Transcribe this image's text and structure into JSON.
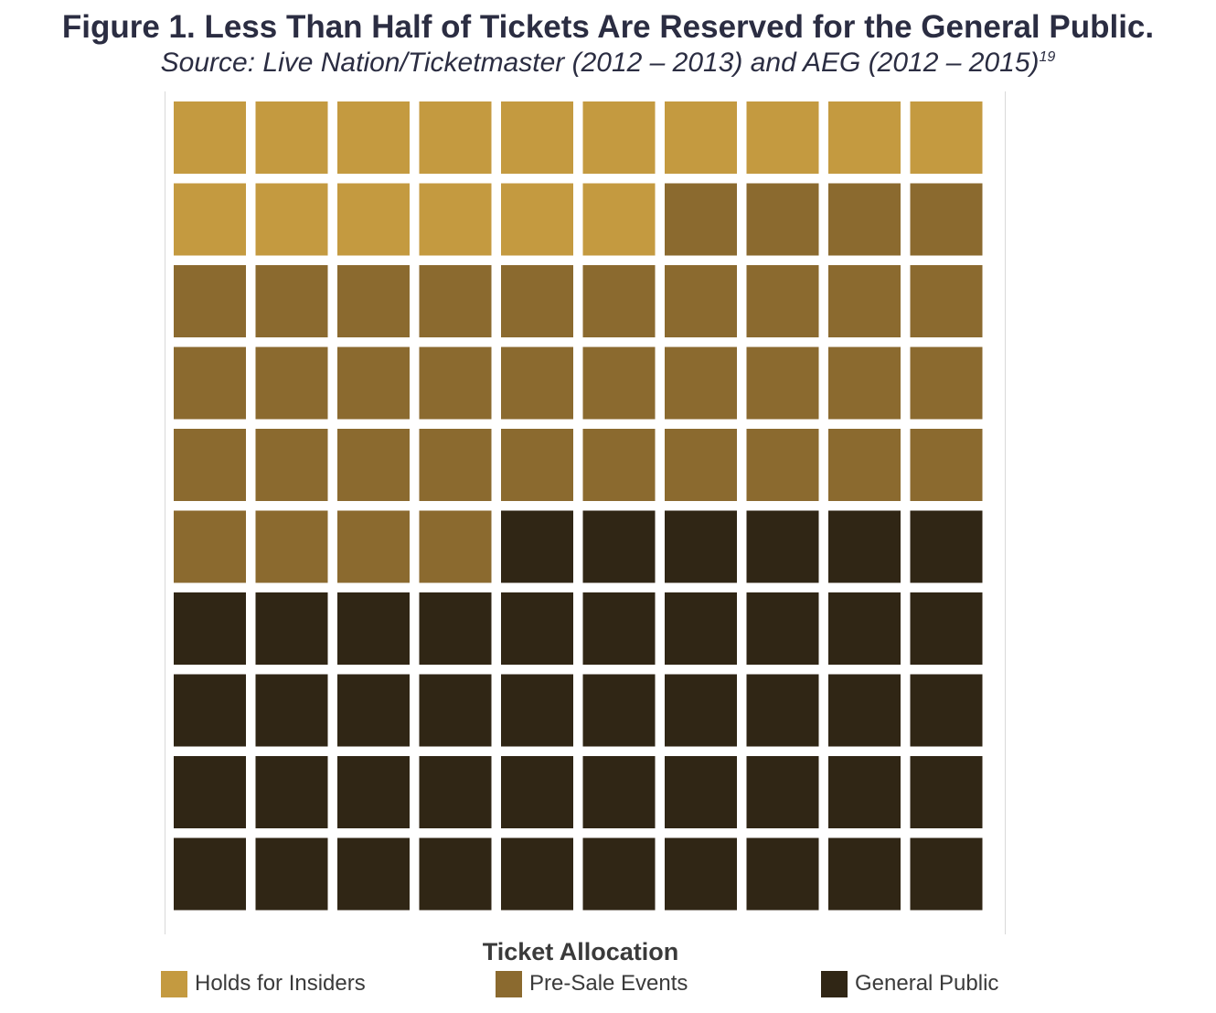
{
  "header": {
    "title": "Figure 1.  Less Than Half of Tickets Are Reserved for the General Public.",
    "subtitle": "Source: Live Nation/Ticketmaster (2012 – 2013) and AEG (2012 – 2015)",
    "footnote": "19"
  },
  "chart_data": {
    "type": "waffle",
    "title": "Figure 1.  Less Than Half of Tickets Are Reserved for the General Public.",
    "subtitle": "Source: Live Nation/Ticketmaster (2012 – 2013) and AEG (2012 – 2015)",
    "rows": 10,
    "columns": 10,
    "total_units": 100,
    "legend_title": "Ticket Allocation",
    "legend_placement": "bottom",
    "categories": [
      "Holds for Insiders",
      "Pre-Sale Events",
      "General Public"
    ],
    "values": [
      16,
      38,
      46
    ],
    "colors": [
      "#c49a40",
      "#8b6a2f",
      "#302615"
    ]
  }
}
